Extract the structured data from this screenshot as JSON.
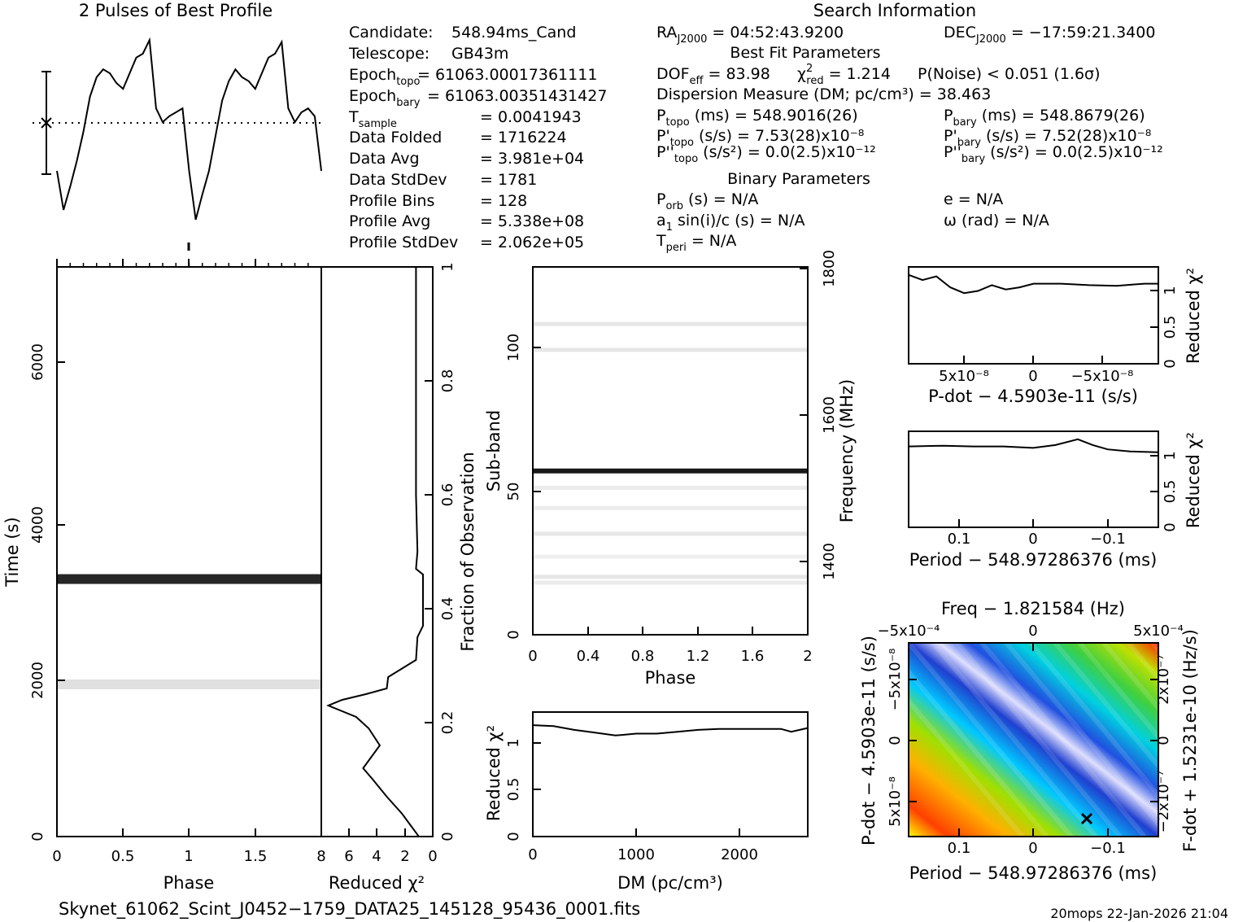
{
  "titles": {
    "profile": "2 Pulses of Best Profile",
    "search": "Search Information",
    "best_fit": "Best Fit Parameters",
    "binary": "Binary Parameters",
    "filename": "Skynet_61062_Scint_J0452−1759_DATA25_145128_95436_0001.fits",
    "footer": "20mops 22-Jan-2026 21:04"
  },
  "info_left": [
    {
      "label": "Candidate:",
      "value": "548.94ms_Cand"
    },
    {
      "label": "Telescope:",
      "value": "GB43m"
    },
    {
      "label": "Epoch",
      "sub": "topo",
      "value": "= 61063.00017361111"
    },
    {
      "label": "Epoch",
      "sub": "bary",
      "value": "= 61063.00351431427"
    },
    {
      "label": "T",
      "sub": "sample",
      "value": "=  0.0041943"
    },
    {
      "label": "Data Folded",
      "value": "=  1716224"
    },
    {
      "label": "Data Avg",
      "value": "=  3.981e+04"
    },
    {
      "label": "Data StdDev",
      "value": "=  1781"
    },
    {
      "label": "Profile Bins",
      "value": "=  128"
    },
    {
      "label": "Profile Avg",
      "value": "=  5.338e+08"
    },
    {
      "label": "Profile StdDev",
      "value": "=  2.062e+05"
    }
  ],
  "info_right": {
    "ra": {
      "label": "RA",
      "sub": "J2000",
      "value": "= 04:52:43.9200"
    },
    "dec": {
      "label": "DEC",
      "sub": "J2000",
      "value": "= −17:59:21.3400"
    },
    "dof": {
      "label": "DOF",
      "sub": "eff",
      "value": "= 83.98"
    },
    "chi2": {
      "label": "χ",
      "sup": "2",
      "sub": "red",
      "value": "= 1.214"
    },
    "pnoise": "P(Noise) < 0.051   (1.6σ)",
    "dm": "Dispersion Measure (DM; pc/cm³) = 38.463",
    "p_topo": {
      "label": "P",
      "sub": "topo",
      "value": "(ms) =  548.9016(26)"
    },
    "p_bary": {
      "label": "P",
      "sub": "bary",
      "value": "(ms) =  548.8679(26)"
    },
    "pd_topo": {
      "label": "P'",
      "sub": "topo",
      "value": "(s/s) =  7.53(28)x10⁻⁸"
    },
    "pd_bary": {
      "label": "P'",
      "sub": "bary",
      "value": "(s/s) =  7.52(28)x10⁻⁸"
    },
    "pdd_topo": {
      "label": "P''",
      "sub": "topo",
      "value": "(s/s²) = 0.0(2.5)x10⁻¹²"
    },
    "pdd_bary": {
      "label": "P''",
      "sub": "bary",
      "value": "(s/s²) = 0.0(2.5)x10⁻¹²"
    },
    "porb": {
      "label": "P",
      "sub": "orb",
      "value": "(s) = N/A"
    },
    "e": "e = N/A",
    "asini": {
      "label": "a",
      "sub": "1",
      "value": "sin(i)/c (s) = N/A"
    },
    "omega": "ω (rad) = N/A",
    "tperi": {
      "label": "T",
      "sub": "peri",
      "value": "= N/A"
    }
  },
  "chart_data": [
    {
      "id": "profile",
      "type": "line",
      "title": "2 Pulses of Best Profile",
      "xlabel": "",
      "ylabel": "",
      "xlim": [
        0,
        2
      ],
      "x": [
        0,
        0.05,
        0.1,
        0.15,
        0.2,
        0.25,
        0.3,
        0.35,
        0.4,
        0.45,
        0.5,
        0.55,
        0.6,
        0.65,
        0.7,
        0.75,
        0.8,
        0.85,
        0.9,
        0.95,
        1.0,
        1.05,
        1.1,
        1.15,
        1.2,
        1.25,
        1.3,
        1.35,
        1.4,
        1.45,
        1.5,
        1.55,
        1.6,
        1.65,
        1.7,
        1.75,
        1.8,
        1.85,
        1.9,
        1.95,
        2.0
      ],
      "y": [
        0.3,
        0.1,
        0.22,
        0.35,
        0.5,
        0.68,
        0.78,
        0.82,
        0.8,
        0.75,
        0.72,
        0.8,
        0.88,
        0.9,
        0.97,
        0.62,
        0.55,
        0.58,
        0.6,
        0.62,
        0.3,
        0.05,
        0.18,
        0.3,
        0.48,
        0.66,
        0.76,
        0.82,
        0.78,
        0.76,
        0.72,
        0.8,
        0.88,
        0.9,
        0.96,
        0.62,
        0.55,
        0.6,
        0.62,
        0.58,
        0.3
      ]
    },
    {
      "id": "time-phase",
      "type": "heatmap",
      "xlabel": "Phase",
      "ylabel": "Time (s)",
      "xlim": [
        0,
        2
      ],
      "ylim": [
        0,
        7300
      ],
      "xticks": [
        "0",
        "0.5",
        "1",
        "1.5"
      ],
      "yticks": [
        "0",
        "2000",
        "4000",
        "6000"
      ],
      "bands": [
        {
          "time": 3300,
          "intensity": 0.85
        },
        {
          "time": 1950,
          "intensity": 0.12
        }
      ]
    },
    {
      "id": "chi2-vs-fraction",
      "type": "line",
      "xlabel": "Reduced χ²",
      "ylabel": "Fraction of Observation",
      "xlim": [
        8,
        0
      ],
      "ylim": [
        0,
        1
      ],
      "xticks": [
        "8",
        "6",
        "4",
        "2",
        "0"
      ],
      "yticks": [
        "0",
        "0.2",
        "0.4",
        "0.6",
        "0.8",
        "1"
      ],
      "x": [
        1.0,
        1.6,
        2.2,
        3.3,
        4.3,
        5.0,
        3.8,
        4.6,
        5.5,
        7.5,
        6.5,
        4.8,
        3.3,
        3.2,
        1.2,
        1.1,
        0.7,
        0.7,
        1.2,
        1.1,
        1.2,
        1.2,
        1.2
      ],
      "y": [
        0,
        0.02,
        0.04,
        0.07,
        0.1,
        0.12,
        0.16,
        0.19,
        0.21,
        0.23,
        0.24,
        0.25,
        0.26,
        0.28,
        0.31,
        0.35,
        0.37,
        0.46,
        0.47,
        0.5,
        0.6,
        0.8,
        1.0
      ]
    },
    {
      "id": "subband-phase",
      "type": "heatmap",
      "xlabel": "Phase",
      "ylabel": "Sub-band",
      "y2label": "Frequency (MHz)",
      "xlim": [
        0,
        2
      ],
      "ylim": [
        0,
        128
      ],
      "xticks": [
        "0",
        "0.4",
        "0.8",
        "1.2",
        "1.6",
        "2"
      ],
      "yticks": [
        "0",
        "50",
        "100"
      ],
      "y2ticks": [
        "1400",
        "1600",
        "1800"
      ],
      "bands": [
        {
          "subband": 57,
          "intensity": 0.9
        },
        {
          "subband": 108,
          "intensity": 0.1
        },
        {
          "subband": 99,
          "intensity": 0.1
        },
        {
          "subband": 51,
          "intensity": 0.08
        },
        {
          "subband": 44,
          "intensity": 0.08
        },
        {
          "subband": 35,
          "intensity": 0.1
        },
        {
          "subband": 27,
          "intensity": 0.06
        },
        {
          "subband": 20,
          "intensity": 0.1
        },
        {
          "subband": 18,
          "intensity": 0.08
        }
      ]
    },
    {
      "id": "dm-chi2",
      "type": "line",
      "xlabel": "DM (pc/cm³)",
      "ylabel": "Reduced χ²",
      "xlim": [
        0,
        2660
      ],
      "ylim": [
        0,
        1.33
      ],
      "xticks": [
        "0",
        "1000",
        "2000"
      ],
      "yticks": [
        "0",
        "0.5",
        "1"
      ],
      "x": [
        0,
        200,
        400,
        600,
        800,
        1000,
        1200,
        1400,
        1600,
        1800,
        2000,
        2200,
        2400,
        2500,
        2660
      ],
      "y": [
        1.19,
        1.18,
        1.14,
        1.11,
        1.08,
        1.1,
        1.1,
        1.12,
        1.14,
        1.15,
        1.15,
        1.15,
        1.15,
        1.12,
        1.16
      ]
    },
    {
      "id": "pdot-chi2",
      "type": "line",
      "xlabel": "P-dot − 4.5903e-11 (s/s)",
      "ylabel": "Reduced χ²",
      "xlim": [
        9e-08,
        -9e-08
      ],
      "ylim": [
        0,
        1.33
      ],
      "xticks": [
        "5x10⁻⁸",
        "0",
        "−5x10⁻⁸"
      ],
      "yticks": [
        "0",
        "0.5",
        "1"
      ],
      "x": [
        9e-08,
        8e-08,
        7e-08,
        6e-08,
        5e-08,
        4e-08,
        3e-08,
        2e-08,
        1e-08,
        0,
        -2e-08,
        -4e-08,
        -6e-08,
        -8e-08,
        -9e-08
      ],
      "y": [
        1.22,
        1.15,
        1.2,
        1.05,
        0.97,
        1.0,
        1.08,
        1.02,
        1.05,
        1.1,
        1.1,
        1.08,
        1.07,
        1.1,
        1.1
      ]
    },
    {
      "id": "period-chi2",
      "type": "line",
      "xlabel": "Period − 548.97286376 (ms)",
      "ylabel": "Reduced χ²",
      "xlim": [
        0.167,
        -0.168
      ],
      "xticks": [
        "0.1",
        "0",
        "−0.1"
      ],
      "yticks": [
        "0",
        "0.5",
        "1"
      ],
      "x": [
        0.167,
        0.12,
        0.08,
        0.04,
        0,
        -0.03,
        -0.06,
        -0.08,
        -0.1,
        -0.13,
        -0.168
      ],
      "y": [
        1.12,
        1.13,
        1.12,
        1.12,
        1.1,
        1.14,
        1.22,
        1.14,
        1.08,
        1.05,
        1.04
      ],
      "ylim": [
        0,
        1.33
      ]
    },
    {
      "id": "p-pdot-map",
      "type": "heatmap",
      "title": "Freq − 1.821584 (Hz)",
      "xlabel": "Period − 548.97286376 (ms)",
      "ylabel": "P-dot − 4.5903e-11 (s/s)",
      "y2label": "F-dot + 1.5231e-10 (Hz/s)",
      "xticks": [
        "0.1",
        "0",
        "−0.1"
      ],
      "x2ticks": [
        "−5x10⁻⁴",
        "0",
        "5x10⁻⁴"
      ],
      "yticks": [
        "5x10⁻⁸",
        "0",
        "−5x10⁻⁸"
      ],
      "y2ticks": [
        "−2x10⁻⁷",
        "0",
        "2x10⁻⁷"
      ],
      "best": {
        "period": -0.073,
        "pdot": 7.5e-08
      }
    }
  ],
  "colors": {
    "line": "#000000",
    "band": "#000000",
    "map_low": "#0000cc",
    "map_high": "#ff0000"
  }
}
